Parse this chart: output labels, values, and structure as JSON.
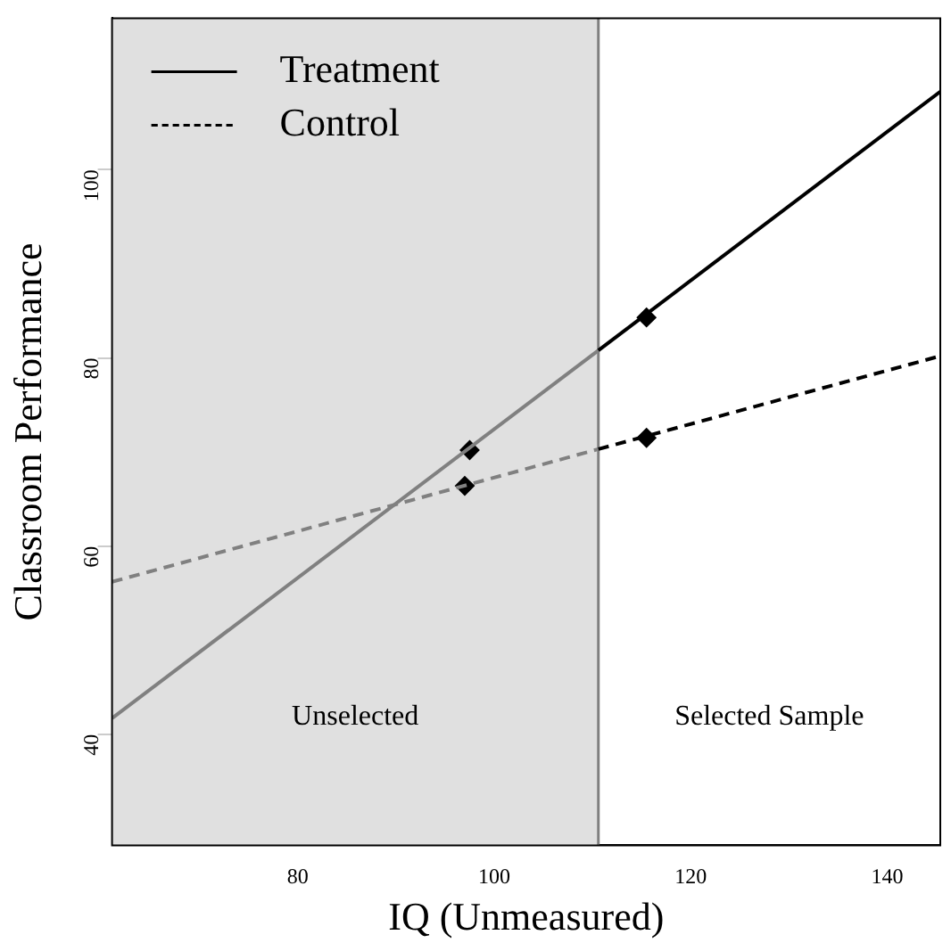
{
  "chart_data": {
    "type": "line",
    "xlabel": "IQ (Unmeasured)",
    "ylabel": "Classroom Performance",
    "xlim": [
      61.1,
      145.4
    ],
    "ylim": [
      28.2,
      116.1
    ],
    "xticks": [
      80,
      100,
      120,
      140
    ],
    "yticks": [
      40,
      60,
      80,
      100
    ],
    "grid": false,
    "legend": "top left",
    "marker": "none",
    "series": [
      {
        "name": "Treatment",
        "color": "#000000",
        "x": [
          110.6,
          145.4
        ],
        "values": [
          80.8,
          108.3
        ],
        "line_style": "solid"
      },
      {
        "name": "Control",
        "color": "#000000",
        "x": [
          110.6,
          145.4
        ],
        "values": [
          70.3,
          80.2
        ],
        "line_style": "dashed"
      },
      {
        "color": "#808080",
        "x": [
          61.1,
          110.6
        ],
        "values": [
          41.7,
          80.8
        ],
        "line_style": "solid"
      },
      {
        "color": "#808080",
        "x": [
          61.1,
          110.6
        ],
        "values": [
          56.2,
          70.3
        ],
        "line_style": "dashed"
      },
      {
        "type": "scatter",
        "color": "#000000",
        "marker": "diamond",
        "x": [
          97.5,
          97,
          115.5,
          115.5
        ],
        "values": [
          70.2,
          66.4,
          84.3,
          71.5
        ]
      }
    ],
    "bands": [
      {
        "axis": "x",
        "from": 61.1,
        "to": 110.6,
        "label": "Unselected",
        "color": "#e0e0e0"
      }
    ],
    "ref_lines": [
      {
        "axis": "x",
        "value": 110.6,
        "color": "#808080"
      }
    ],
    "annotations": [
      "Selected Sample"
    ]
  }
}
